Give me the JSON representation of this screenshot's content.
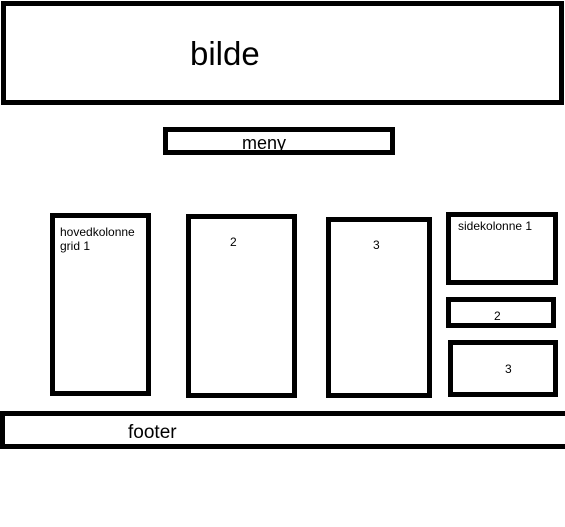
{
  "header": {
    "label": "bilde"
  },
  "menu": {
    "label": "meny"
  },
  "main_column": {
    "grids": [
      {
        "label": "hovedkolonne grid 1"
      },
      {
        "label": "2"
      },
      {
        "label": "3"
      }
    ]
  },
  "side_column": {
    "items": [
      {
        "label": "sidekolonne 1"
      },
      {
        "label": "2"
      },
      {
        "label": "3"
      }
    ]
  },
  "footer": {
    "label": "footer"
  },
  "colors": {
    "stroke": "#000000",
    "background": "#ffffff"
  }
}
